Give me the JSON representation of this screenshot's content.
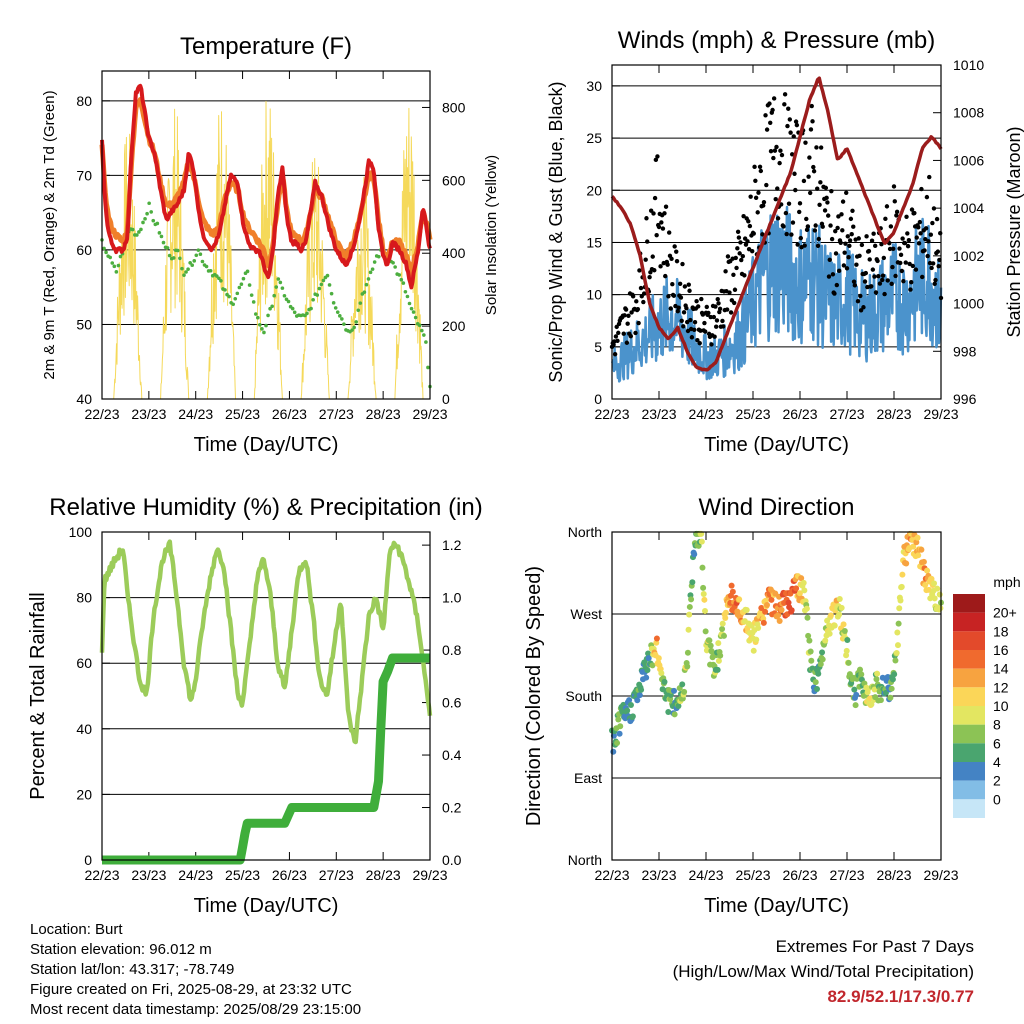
{
  "time_ticks": [
    "22/23",
    "23/23",
    "24/23",
    "25/23",
    "26/23",
    "27/23",
    "28/23",
    "29/23"
  ],
  "chart_data": [
    {
      "type": "line",
      "title": "Temperature (F)",
      "xlabel": "Time (Day/UTC)",
      "ylabel": "2m & 9m T (Red, Orange) & 2m Td (Green)",
      "ylabel_right": "Solar Insolation (Yellow)",
      "ylim": [
        40,
        84
      ],
      "y_ticks": [
        40,
        50,
        60,
        70,
        80
      ],
      "y2lim": [
        0,
        900
      ],
      "y2_ticks": [
        0,
        200,
        400,
        600,
        800
      ],
      "grid": true,
      "colors": {
        "t2m": "#d7191c",
        "t9m": "#f07f2a",
        "td": "#4cae3f",
        "solar": "#f5d95a"
      },
      "series": [
        {
          "key": "t2m",
          "x": [
            0,
            0.05,
            0.12,
            0.2,
            0.3,
            0.45,
            0.55,
            0.62,
            0.72,
            0.82,
            0.9,
            1.0,
            1.12,
            1.25,
            1.37,
            1.47,
            1.6,
            1.75,
            1.85,
            1.95,
            2.05,
            2.15,
            2.25,
            2.35,
            2.5,
            2.62,
            2.75,
            2.9,
            3.0,
            3.12,
            3.25,
            3.35,
            3.45,
            3.55,
            3.65,
            3.75,
            3.85,
            3.95,
            4.05,
            4.15,
            4.25,
            4.35,
            4.45,
            4.55,
            4.7,
            4.85,
            5.0,
            5.1,
            5.2,
            5.35,
            5.5,
            5.6,
            5.7,
            5.8,
            5.9,
            6.0,
            6.1,
            6.2,
            6.35,
            6.5,
            6.6,
            6.75,
            6.85,
            6.95,
            7.0
          ],
          "values": [
            75,
            68,
            63,
            61,
            60,
            60,
            62,
            72,
            81,
            82,
            79,
            75,
            73,
            68,
            64,
            65,
            66,
            68,
            73,
            71,
            66,
            62,
            61,
            60,
            62,
            66,
            70,
            69,
            64,
            61,
            60,
            60,
            58,
            56,
            60,
            67,
            71,
            64,
            61,
            61,
            60,
            61,
            65,
            69,
            67,
            63,
            60,
            59,
            58,
            60,
            64,
            68,
            72,
            71,
            63,
            59,
            58,
            61,
            60,
            58,
            55,
            60,
            66,
            62,
            60
          ]
        },
        {
          "key": "t9m",
          "x": [
            0,
            0.05,
            0.12,
            0.2,
            0.3,
            0.45,
            0.55,
            0.62,
            0.72,
            0.82,
            0.9,
            1.0,
            1.12,
            1.25,
            1.37,
            1.47,
            1.6,
            1.75,
            1.85,
            1.95,
            2.05,
            2.15,
            2.25,
            2.35,
            2.5,
            2.62,
            2.75,
            2.9,
            3.0,
            3.12,
            3.25,
            3.35,
            3.45,
            3.55,
            3.65,
            3.75,
            3.85,
            3.95,
            4.05,
            4.15,
            4.25,
            4.35,
            4.45,
            4.55,
            4.7,
            4.85,
            5.0,
            5.1,
            5.2,
            5.35,
            5.5,
            5.6,
            5.7,
            5.8,
            5.9,
            6.0,
            6.1,
            6.2,
            6.35,
            6.5,
            6.6,
            6.75,
            6.85,
            6.95,
            7.0
          ],
          "values": [
            74,
            69,
            65,
            63,
            62,
            61,
            63,
            71,
            79,
            80,
            78,
            75,
            73,
            69,
            66,
            66,
            67,
            69,
            72,
            70,
            67,
            64,
            63,
            62,
            63,
            67,
            69,
            68,
            65,
            63,
            62,
            61,
            60,
            58,
            61,
            66,
            70,
            65,
            62,
            62,
            61,
            62,
            65,
            68,
            67,
            64,
            61,
            60,
            59,
            61,
            64,
            67,
            70,
            70,
            64,
            60,
            59,
            61,
            61,
            59,
            57,
            61,
            65,
            63,
            61
          ]
        },
        {
          "key": "td",
          "x": [
            0,
            0.15,
            0.3,
            0.45,
            0.6,
            0.75,
            0.9,
            1.0,
            1.1,
            1.2,
            1.3,
            1.4,
            1.5,
            1.6,
            1.75,
            1.9,
            2.05,
            2.2,
            2.35,
            2.5,
            2.65,
            2.8,
            2.95,
            3.1,
            3.2,
            3.3,
            3.45,
            3.6,
            3.75,
            3.9,
            4.05,
            4.2,
            4.35,
            4.5,
            4.65,
            4.8,
            4.95,
            5.1,
            5.25,
            5.4,
            5.55,
            5.7,
            5.85,
            6.0,
            6.15,
            6.3,
            6.45,
            6.6,
            6.75,
            6.9,
            7.0
          ],
          "values": [
            61,
            59,
            57,
            60,
            63,
            62,
            64,
            66,
            64,
            63,
            61,
            60,
            59,
            60,
            57,
            58,
            60,
            58,
            57,
            56,
            54,
            53,
            55,
            57,
            54,
            51,
            49,
            52,
            56,
            54,
            52,
            51,
            51,
            53,
            55,
            57,
            53,
            51,
            49,
            50,
            54,
            56,
            59,
            60,
            59,
            57,
            55,
            52,
            50,
            48,
            42
          ]
        },
        {
          "key": "solar",
          "peaks_x": [
            0.55,
            1.55,
            2.55,
            3.55,
            4.55,
            5.55,
            6.55
          ],
          "peak_values": [
            750,
            820,
            860,
            870,
            700,
            640,
            880
          ]
        }
      ]
    },
    {
      "type": "scatter",
      "title": "Winds (mph) & Pressure (mb)",
      "xlabel": "Time (Day/UTC)",
      "ylabel": "Sonic/Prop Wind & Gust (Blue, Black)",
      "ylabel_right": "Station Pressure (Maroon)",
      "ylim": [
        0,
        32
      ],
      "y_ticks": [
        0,
        5,
        10,
        15,
        20,
        25,
        30
      ],
      "y2lim": [
        996,
        1010
      ],
      "y2_ticks": [
        996,
        998,
        1000,
        1002,
        1004,
        1006,
        1008,
        1010
      ],
      "grid": true,
      "colors": {
        "wind": "#4b93cc",
        "gust": "#000000",
        "pressure": "#9b1c1c"
      },
      "series": [
        {
          "key": "wind_sustained",
          "x": [
            0,
            0.25,
            0.5,
            0.75,
            1.0,
            1.25,
            1.5,
            1.75,
            2.0,
            2.25,
            2.5,
            2.75,
            3.0,
            3.25,
            3.5,
            3.75,
            4.0,
            4.25,
            4.5,
            4.75,
            5.0,
            5.25,
            5.5,
            5.75,
            6.0,
            6.25,
            6.5,
            6.75,
            7.0
          ],
          "values": [
            3,
            4,
            5,
            6,
            7,
            8,
            7,
            5,
            4,
            4,
            5,
            6,
            9,
            12,
            13,
            12,
            11,
            12,
            10,
            9,
            10,
            8,
            8,
            9,
            10,
            9,
            11,
            12,
            8
          ]
        },
        {
          "key": "gust",
          "x": [
            0,
            0.25,
            0.5,
            0.75,
            1.0,
            1.25,
            1.5,
            1.75,
            2.0,
            2.25,
            2.5,
            2.75,
            3.0,
            3.25,
            3.5,
            3.75,
            4.0,
            4.25,
            4.5,
            4.75,
            5.0,
            5.25,
            5.5,
            5.75,
            6.0,
            6.25,
            6.5,
            6.75,
            7.0
          ],
          "values": [
            5,
            7,
            9,
            14,
            19,
            12,
            10,
            8,
            7,
            8,
            11,
            13,
            17,
            21,
            24,
            22,
            20,
            22,
            18,
            14,
            16,
            12,
            12,
            13,
            16,
            14,
            15,
            17,
            12
          ]
        },
        {
          "key": "pressure",
          "x": [
            0,
            0.2,
            0.4,
            0.6,
            0.8,
            1.0,
            1.2,
            1.4,
            1.6,
            1.8,
            2.0,
            2.2,
            2.4,
            2.6,
            2.8,
            3.0,
            3.2,
            3.4,
            3.6,
            3.8,
            4.0,
            4.2,
            4.4,
            4.6,
            4.8,
            5.0,
            5.2,
            5.4,
            5.6,
            5.8,
            6.0,
            6.2,
            6.4,
            6.6,
            6.8,
            7.0
          ],
          "values": [
            1004.5,
            1004.0,
            1003.3,
            1002.0,
            1000.0,
            999.0,
            998.5,
            999.0,
            998.0,
            997.3,
            997.2,
            997.5,
            998.5,
            999.5,
            1000.5,
            1001.5,
            1002.5,
            1003.5,
            1004.5,
            1005.5,
            1007.0,
            1008.5,
            1009.5,
            1008.0,
            1006.0,
            1006.5,
            1005.5,
            1004.5,
            1003.5,
            1002.5,
            1003.0,
            1004.0,
            1005.0,
            1006.5,
            1007.0,
            1006.5
          ]
        }
      ]
    },
    {
      "type": "line",
      "title": "Relative Humidity (%) & Precipitation (in)",
      "xlabel": "Time (Day/UTC)",
      "ylabel": "Percent & Total Rainfall",
      "ylim": [
        0,
        100
      ],
      "y_ticks": [
        0,
        20,
        40,
        60,
        80,
        100
      ],
      "y2lim": [
        0,
        1.25
      ],
      "y2_ticks": [
        "0.0",
        "0.2",
        "0.4",
        "0.6",
        "0.8",
        "1.0",
        "1.2"
      ],
      "grid": true,
      "colors": {
        "rh": "#9ccc5a",
        "precip": "#3fae3b"
      },
      "series": [
        {
          "key": "rh",
          "x": [
            0,
            0.05,
            0.15,
            0.3,
            0.45,
            0.55,
            0.65,
            0.8,
            0.95,
            1.1,
            1.3,
            1.45,
            1.6,
            1.75,
            1.9,
            2.0,
            2.15,
            2.3,
            2.45,
            2.6,
            2.75,
            2.9,
            3.0,
            3.15,
            3.3,
            3.45,
            3.6,
            3.75,
            3.9,
            4.05,
            4.2,
            4.35,
            4.5,
            4.65,
            4.8,
            4.95,
            5.1,
            5.25,
            5.4,
            5.55,
            5.7,
            5.85,
            6.0,
            6.15,
            6.3,
            6.45,
            6.6,
            6.75,
            6.9,
            7.0
          ],
          "values": [
            63,
            85,
            88,
            92,
            95,
            80,
            70,
            55,
            50,
            75,
            92,
            96,
            80,
            60,
            48,
            55,
            72,
            85,
            95,
            90,
            70,
            50,
            48,
            65,
            85,
            92,
            80,
            60,
            52,
            70,
            88,
            92,
            75,
            55,
            50,
            65,
            80,
            45,
            35,
            55,
            75,
            80,
            70,
            95,
            96,
            90,
            82,
            72,
            55,
            45
          ]
        },
        {
          "key": "precip",
          "x": [
            0,
            2.95,
            3.0,
            3.05,
            3.1,
            3.9,
            4.0,
            4.05,
            4.1,
            5.8,
            5.9,
            5.95,
            6.0,
            6.1,
            6.2,
            7.0
          ],
          "values": [
            0,
            0,
            0.05,
            0.1,
            0.14,
            0.14,
            0.18,
            0.2,
            0.2,
            0.2,
            0.3,
            0.5,
            0.68,
            0.72,
            0.77,
            0.77
          ]
        }
      ]
    },
    {
      "type": "scatter",
      "title": "Wind Direction",
      "xlabel": "Time (Day/UTC)",
      "ylabel": "Direction (Colored By Speed)",
      "ylim": [
        0,
        360
      ],
      "y_ticks": [
        "North",
        "East",
        "South",
        "West",
        "North"
      ],
      "grid": true,
      "colorbar": {
        "title": "mph",
        "labels": [
          "20+",
          "18",
          "16",
          "14",
          "12",
          "10",
          "8",
          "6",
          "4",
          "2",
          "0"
        ],
        "colors": [
          "#9e1a1a",
          "#c72323",
          "#e34a2b",
          "#f06a2e",
          "#f7a340",
          "#fbd658",
          "#e3e661",
          "#8cc355",
          "#4aa56f",
          "#4483c4",
          "#82bde6",
          "#c6e6f7"
        ]
      },
      "series": [
        {
          "key": "direction",
          "x": [
            0.05,
            0.15,
            0.3,
            0.45,
            0.6,
            0.8,
            0.95,
            1.1,
            1.2,
            1.35,
            1.5,
            1.6,
            1.75,
            1.9,
            2.0,
            2.2,
            2.35,
            2.5,
            2.65,
            2.8,
            3.0,
            3.2,
            3.35,
            3.5,
            3.65,
            3.8,
            3.95,
            4.1,
            4.25,
            4.4,
            4.55,
            4.7,
            4.85,
            5.0,
            5.15,
            5.3,
            5.45,
            5.6,
            5.75,
            5.9,
            6.05,
            6.2,
            6.35,
            6.5,
            6.65,
            6.8,
            6.95
          ],
          "values": [
            130,
            150,
            160,
            170,
            190,
            225,
            230,
            195,
            175,
            170,
            185,
            225,
            350,
            355,
            240,
            210,
            250,
            290,
            280,
            270,
            240,
            270,
            290,
            275,
            280,
            285,
            300,
            290,
            200,
            200,
            255,
            270,
            275,
            230,
            180,
            200,
            180,
            190,
            190,
            185,
            220,
            330,
            355,
            345,
            310,
            300,
            280
          ],
          "speeds": [
            3,
            4,
            3,
            4,
            3,
            4,
            12,
            5,
            6,
            4,
            6,
            8,
            4,
            6,
            8,
            6,
            7,
            12,
            14,
            10,
            9,
            12,
            13,
            12,
            14,
            16,
            12,
            8,
            5,
            4,
            8,
            10,
            9,
            6,
            4,
            5,
            8,
            7,
            4,
            3,
            6,
            10,
            12,
            10,
            12,
            10,
            6
          ]
        }
      ]
    }
  ],
  "footer": {
    "location": "Location: Burt",
    "elevation": "Station elevation: 96.012 m",
    "latlon": "Station lat/lon: 43.317; -78.749",
    "created": "Figure created on Fri, 2025-08-29, at 23:32 UTC",
    "recent": "Most recent data timestamp: 2025/08/29 23:15:00",
    "extremes_title": "Extremes For Past 7 Days",
    "extremes_sub": "(High/Low/Max Wind/Total Precipitation)",
    "extremes_values": "82.9/52.1/17.3/0.77"
  }
}
